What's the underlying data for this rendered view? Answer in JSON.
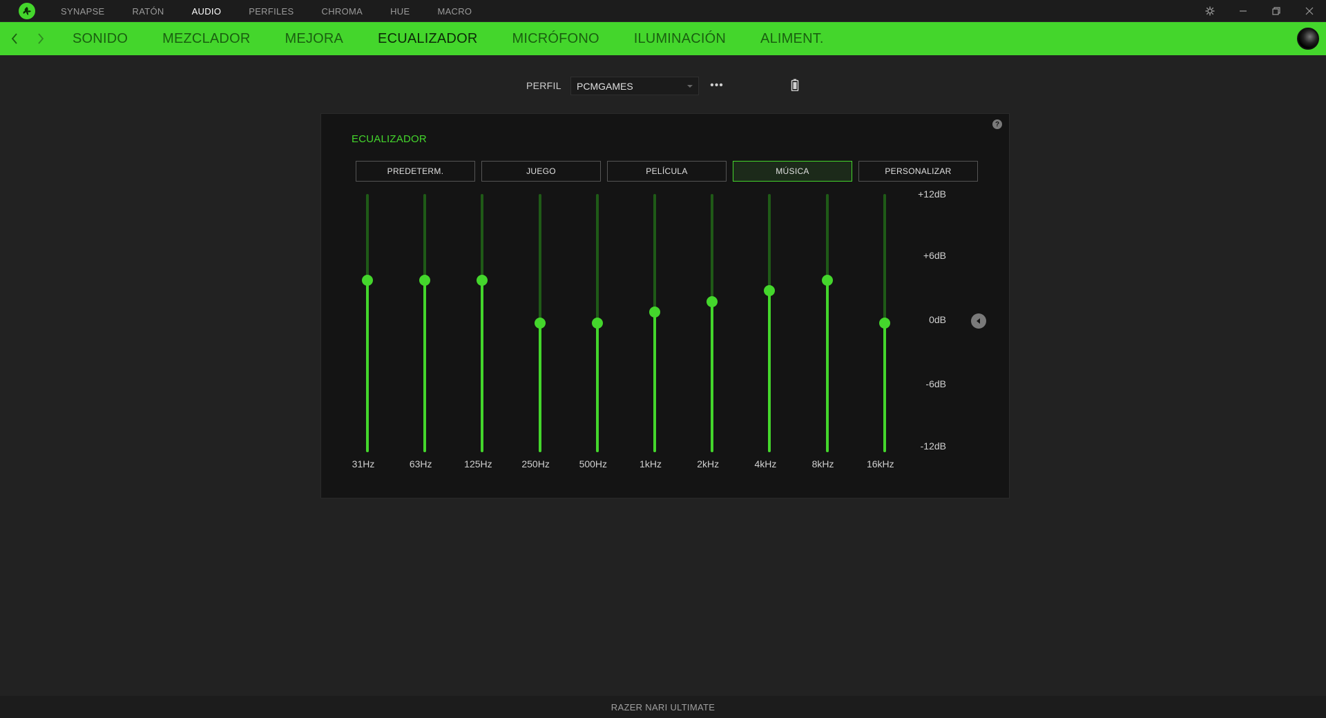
{
  "top_nav": {
    "items": [
      {
        "label": "SYNAPSE",
        "active": false
      },
      {
        "label": "RATÓN",
        "active": false
      },
      {
        "label": "AUDIO",
        "active": true
      },
      {
        "label": "PERFILES",
        "active": false
      },
      {
        "label": "CHROMA",
        "active": false
      },
      {
        "label": "HUE",
        "active": false
      },
      {
        "label": "MACRO",
        "active": false
      }
    ]
  },
  "sub_nav": {
    "items": [
      {
        "label": "SONIDO",
        "active": false
      },
      {
        "label": "MEZCLADOR",
        "active": false
      },
      {
        "label": "MEJORA",
        "active": false
      },
      {
        "label": "ECUALIZADOR",
        "active": true
      },
      {
        "label": "MICRÓFONO",
        "active": false
      },
      {
        "label": "ILUMINACIÓN",
        "active": false
      },
      {
        "label": "ALIMENT.",
        "active": false
      }
    ]
  },
  "profile": {
    "label": "PERFIL",
    "value": "PCMGAMES",
    "more": "•••"
  },
  "equalizer": {
    "title": "ECUALIZADOR",
    "help": "?",
    "presets": [
      {
        "label": "PREDETERM.",
        "active": false
      },
      {
        "label": "JUEGO",
        "active": false
      },
      {
        "label": "PELÍCULA",
        "active": false
      },
      {
        "label": "MÚSICA",
        "active": true
      },
      {
        "label": "PERSONALIZAR",
        "active": false
      }
    ],
    "db_scale": [
      "+12dB",
      "+6dB",
      "0dB",
      "-6dB",
      "-12dB"
    ],
    "db_range": [
      -12,
      12
    ],
    "bands": [
      {
        "freq": "31Hz",
        "gain": 4
      },
      {
        "freq": "63Hz",
        "gain": 4
      },
      {
        "freq": "125Hz",
        "gain": 4
      },
      {
        "freq": "250Hz",
        "gain": 0
      },
      {
        "freq": "500Hz",
        "gain": 0
      },
      {
        "freq": "1kHz",
        "gain": 1
      },
      {
        "freq": "2kHz",
        "gain": 2
      },
      {
        "freq": "4kHz",
        "gain": 3
      },
      {
        "freq": "8kHz",
        "gain": 4
      },
      {
        "freq": "16kHz",
        "gain": 0
      }
    ]
  },
  "colors": {
    "accent": "#44d62c",
    "track_dim": "#1f5a17"
  },
  "footer": {
    "device": "RAZER NARI ULTIMATE"
  }
}
